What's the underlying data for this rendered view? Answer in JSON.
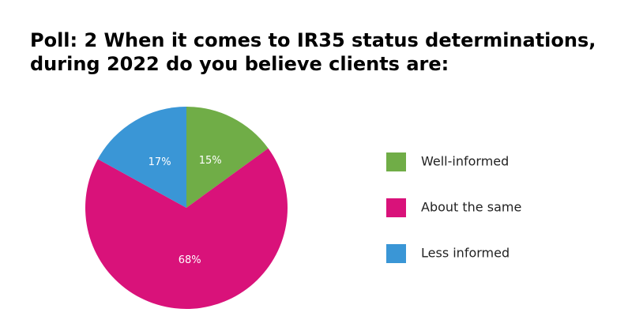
{
  "chart_data": {
    "type": "pie",
    "title": [
      "Poll: 2 When it comes to IR35 status determinations,",
      "during 2022 do you believe clients are:"
    ],
    "categories": [
      "Well-informed",
      "About the same",
      "Less informed"
    ],
    "values": [
      15,
      68,
      17
    ],
    "value_labels": [
      "15%",
      "68%",
      "17%"
    ],
    "colors": [
      "#70ad47",
      "#d9127a",
      "#3a96d6"
    ],
    "legend": "right"
  }
}
